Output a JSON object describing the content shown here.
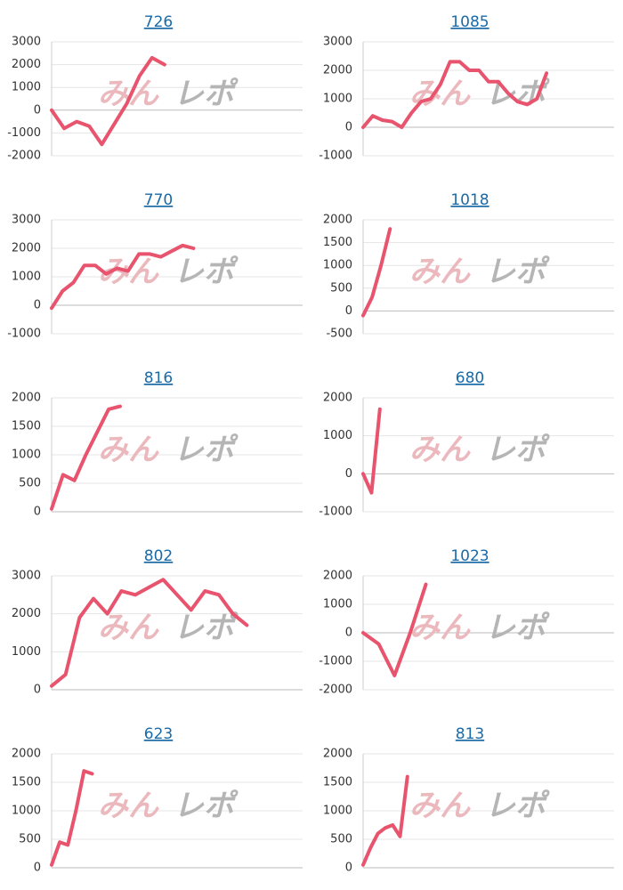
{
  "chart_data": [
    {
      "type": "line",
      "title": "726",
      "color": "#e8546e",
      "values": [
        0,
        -800,
        -500,
        -700,
        -1500,
        -600,
        300,
        1500,
        2300,
        2000
      ],
      "xlim": [
        0,
        20
      ],
      "ylim": [
        -2000,
        3000
      ],
      "yticks": [
        -2000,
        -1000,
        0,
        1000,
        2000,
        3000
      ],
      "grid": true,
      "watermark": [
        "みん",
        "レポ"
      ]
    },
    {
      "type": "line",
      "title": "1085",
      "color": "#e8546e",
      "values": [
        0,
        400,
        250,
        200,
        0,
        500,
        900,
        1000,
        1500,
        2300,
        2300,
        2000,
        2000,
        1600,
        1600,
        1200,
        900,
        800,
        1000,
        1900
      ],
      "xlim": [
        0,
        26
      ],
      "ylim": [
        -1000,
        3000
      ],
      "yticks": [
        -1000,
        0,
        1000,
        2000,
        3000
      ],
      "grid": true,
      "watermark": [
        "みん",
        "レポ"
      ]
    },
    {
      "type": "line",
      "title": "770",
      "color": "#e8546e",
      "values": [
        -100,
        500,
        800,
        1400,
        1400,
        1100,
        1300,
        1200,
        1800,
        1800,
        1700,
        1900,
        2100,
        2000
      ],
      "xlim": [
        0,
        23
      ],
      "ylim": [
        -1000,
        3000
      ],
      "yticks": [
        -1000,
        0,
        1000,
        2000,
        3000
      ],
      "grid": true,
      "watermark": [
        "みん",
        "レポ"
      ]
    },
    {
      "type": "line",
      "title": "1018",
      "color": "#e8546e",
      "values": [
        -100,
        300,
        1000,
        1800
      ],
      "xlim": [
        0,
        28
      ],
      "ylim": [
        -500,
        2000
      ],
      "yticks": [
        -500,
        0,
        500,
        1000,
        1500,
        2000
      ],
      "grid": true,
      "watermark": [
        "みん",
        "レポ"
      ]
    },
    {
      "type": "line",
      "title": "816",
      "color": "#e8546e",
      "values": [
        50,
        650,
        550,
        1000,
        1400,
        1800,
        1850
      ],
      "xlim": [
        0,
        22
      ],
      "ylim": [
        0,
        2000
      ],
      "yticks": [
        0,
        500,
        1000,
        1500,
        2000
      ],
      "grid": true,
      "watermark": [
        "みん",
        "レポ"
      ]
    },
    {
      "type": "line",
      "title": "680",
      "color": "#e8546e",
      "values": [
        0,
        -500,
        1700
      ],
      "xlim": [
        0,
        30
      ],
      "ylim": [
        -1000,
        2000
      ],
      "yticks": [
        -1000,
        0,
        1000,
        2000
      ],
      "grid": true,
      "watermark": [
        "みん",
        "レポ"
      ]
    },
    {
      "type": "line",
      "title": "802",
      "color": "#e8546e",
      "values": [
        100,
        400,
        1900,
        2400,
        2000,
        2600,
        2500,
        2700,
        2900,
        2500,
        2100,
        2600,
        2500,
        2000,
        1700
      ],
      "xlim": [
        0,
        18
      ],
      "ylim": [
        0,
        3000
      ],
      "yticks": [
        0,
        1000,
        2000,
        3000
      ],
      "grid": true,
      "watermark": [
        "みん",
        "レポ"
      ]
    },
    {
      "type": "line",
      "title": "1023",
      "color": "#e8546e",
      "values": [
        0,
        -400,
        -1500,
        0,
        1700
      ],
      "xlim": [
        0,
        16
      ],
      "ylim": [
        -2000,
        2000
      ],
      "yticks": [
        -2000,
        -1000,
        0,
        1000,
        2000
      ],
      "grid": true,
      "watermark": [
        "みん",
        "レポ"
      ]
    },
    {
      "type": "line",
      "title": "623",
      "color": "#e8546e",
      "values": [
        50,
        450,
        400,
        1000,
        1700,
        1650
      ],
      "xlim": [
        0,
        31
      ],
      "ylim": [
        0,
        2000
      ],
      "yticks": [
        0,
        500,
        1000,
        1500,
        2000
      ],
      "grid": true,
      "watermark": [
        "みん",
        "レポ"
      ]
    },
    {
      "type": "line",
      "title": "813",
      "color": "#e8546e",
      "values": [
        50,
        350,
        600,
        700,
        750,
        550,
        1600
      ],
      "xlim": [
        0,
        34
      ],
      "ylim": [
        0,
        2000
      ],
      "yticks": [
        0,
        500,
        1000,
        1500,
        2000
      ],
      "grid": true,
      "watermark": [
        "みん",
        "レポ"
      ]
    }
  ]
}
